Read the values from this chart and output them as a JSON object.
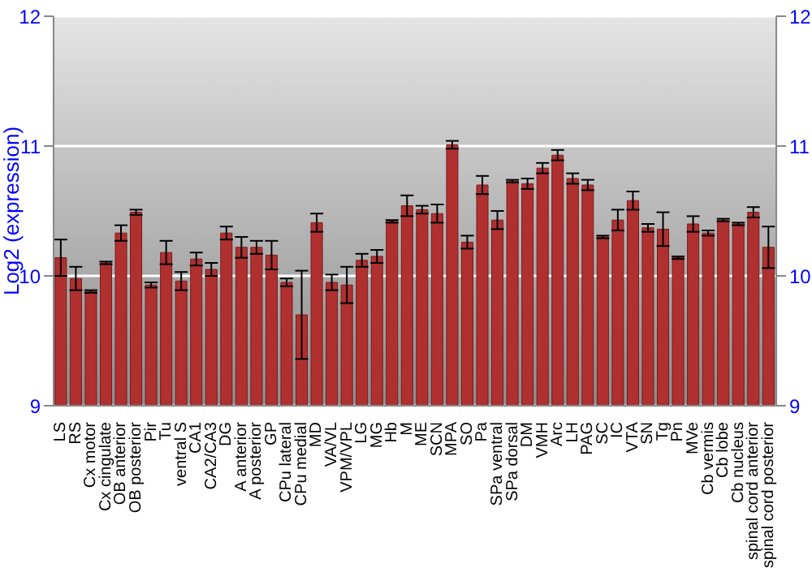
{
  "chart_data": {
    "type": "bar",
    "ylabel": "Log2 (expression)",
    "categories": [
      "LS",
      "RS",
      "Cx motor",
      "Cx cingulate",
      "OB anterior",
      "OB posterior",
      "Pir",
      "Tu",
      "ventral S",
      "CA1",
      "CA2/CA3",
      "DG",
      "A anterior",
      "A posterior",
      "GP",
      "CPu lateral",
      "CPu medial",
      "MD",
      "VA/VL",
      "VPM/VPL",
      "LG",
      "MG",
      "Hb",
      "M",
      "ME",
      "SCN",
      "MPA",
      "SO",
      "Pa",
      "SPa ventral",
      "SPa dorsal",
      "DM",
      "VMH",
      "Arc",
      "LH",
      "PAG",
      "SC",
      "IC",
      "VTA",
      "SN",
      "Tg",
      "Pn",
      "MVe",
      "Cb vermis",
      "Cb lobe",
      "Cb nucleus",
      "spinal cord anterior",
      "spinal cord posterior"
    ],
    "values": [
      10.14,
      9.98,
      9.88,
      10.1,
      10.33,
      10.49,
      9.93,
      10.18,
      9.96,
      10.13,
      10.05,
      10.33,
      10.22,
      10.22,
      10.16,
      9.95,
      9.7,
      10.41,
      9.95,
      9.93,
      10.12,
      10.15,
      10.42,
      10.54,
      10.51,
      10.48,
      11.01,
      10.26,
      10.7,
      10.43,
      10.73,
      10.71,
      10.83,
      10.93,
      10.75,
      10.7,
      10.3,
      10.43,
      10.58,
      10.37,
      10.36,
      10.14,
      10.4,
      10.33,
      10.43,
      10.4,
      10.49,
      10.22
    ],
    "errors": [
      0.14,
      0.09,
      0.01,
      0.01,
      0.06,
      0.02,
      0.02,
      0.09,
      0.07,
      0.05,
      0.05,
      0.05,
      0.08,
      0.05,
      0.11,
      0.03,
      0.34,
      0.07,
      0.06,
      0.14,
      0.05,
      0.05,
      0.01,
      0.08,
      0.03,
      0.07,
      0.03,
      0.05,
      0.07,
      0.07,
      0.01,
      0.04,
      0.04,
      0.04,
      0.04,
      0.04,
      0.01,
      0.08,
      0.07,
      0.03,
      0.13,
      0.01,
      0.06,
      0.02,
      0.01,
      0.01,
      0.04,
      0.16
    ],
    "color": "#b03030",
    "ylim": [
      9,
      12
    ],
    "yticks": [
      9,
      10,
      11,
      12
    ],
    "y2lim": [
      9,
      12
    ],
    "y2ticks": [
      9,
      10,
      11,
      12
    ],
    "grid": "y"
  }
}
